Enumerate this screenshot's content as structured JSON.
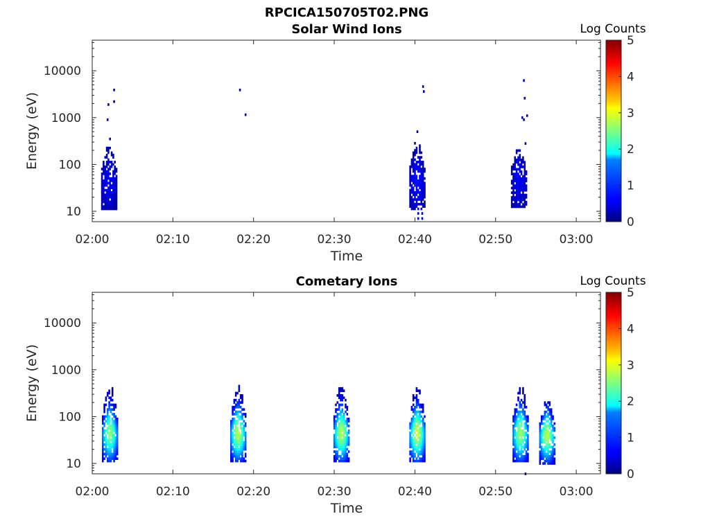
{
  "figure": {
    "filename": "RPCICA150705T02.PNG"
  },
  "chart_data": [
    {
      "type": "heatmap",
      "title": "Solar Wind Ions",
      "xlabel": "Time",
      "ylabel": "Energy (eV)",
      "x_ticks": [
        "02:00",
        "02:10",
        "02:20",
        "02:30",
        "02:40",
        "02:50",
        "03:00"
      ],
      "x_range_minutes": [
        0,
        63
      ],
      "y_scale": "log",
      "y_range": [
        6,
        45000
      ],
      "y_ticks": [
        10,
        100,
        1000,
        10000
      ],
      "y_tick_labels": [
        "10",
        "100",
        "1000",
        "10000"
      ],
      "colorbar": {
        "title": "Log Counts",
        "range": [
          0,
          5
        ],
        "ticks": [
          "0",
          "1",
          "2",
          "3",
          "4",
          "5"
        ],
        "colormap": "jet"
      },
      "clusters": [
        {
          "t": 2.0,
          "e_center": 45,
          "e_spread": 0.35,
          "peak": 0.35,
          "top_energy": 250
        },
        {
          "t": 40.2,
          "e_center": 45,
          "e_spread": 0.35,
          "peak": 0.45,
          "top_energy": 300
        },
        {
          "t": 52.8,
          "e_center": 50,
          "e_spread": 0.35,
          "peak": 0.35,
          "top_energy": 220
        }
      ],
      "points": [
        {
          "t": 2.6,
          "e": 3900,
          "v": 0.2
        },
        {
          "t": 2.6,
          "e": 2200,
          "v": 0.2
        },
        {
          "t": 1.9,
          "e": 1900,
          "v": 0.2
        },
        {
          "t": 1.8,
          "e": 900,
          "v": 0.2
        },
        {
          "t": 2.1,
          "e": 350,
          "v": 0.2
        },
        {
          "t": 18.2,
          "e": 3900,
          "v": 0.2
        },
        {
          "t": 18.9,
          "e": 1150,
          "v": 0.2
        },
        {
          "t": 40.9,
          "e": 4600,
          "v": 0.2
        },
        {
          "t": 41.0,
          "e": 3600,
          "v": 0.2
        },
        {
          "t": 40.2,
          "e": 500,
          "v": 0.2
        },
        {
          "t": 40.3,
          "e": 9,
          "v": 0.3
        },
        {
          "t": 40.3,
          "e": 7,
          "v": 0.3
        },
        {
          "t": 40.8,
          "e": 9,
          "v": 0.3
        },
        {
          "t": 40.8,
          "e": 7,
          "v": 0.3
        },
        {
          "t": 53.4,
          "e": 6200,
          "v": 0.2
        },
        {
          "t": 53.5,
          "e": 2600,
          "v": 0.2
        },
        {
          "t": 53.8,
          "e": 1100,
          "v": 0.2
        },
        {
          "t": 53.2,
          "e": 1000,
          "v": 0.2
        },
        {
          "t": 53.4,
          "e": 900,
          "v": 0.2
        },
        {
          "t": 53.6,
          "e": 280,
          "v": 0.2
        }
      ]
    },
    {
      "type": "heatmap",
      "title": "Cometary Ions",
      "xlabel": "Time",
      "ylabel": "Energy (eV)",
      "x_ticks": [
        "02:00",
        "02:10",
        "02:20",
        "02:30",
        "02:40",
        "02:50",
        "03:00"
      ],
      "x_range_minutes": [
        0,
        63
      ],
      "y_scale": "log",
      "y_range": [
        6,
        45000
      ],
      "y_ticks": [
        10,
        100,
        1000,
        10000
      ],
      "y_tick_labels": [
        "10",
        "100",
        "1000",
        "10000"
      ],
      "colorbar": {
        "title": "Log Counts",
        "range": [
          0,
          5
        ],
        "ticks": [
          "0",
          "1",
          "2",
          "3",
          "4",
          "5"
        ],
        "colormap": "jet"
      },
      "clusters": [
        {
          "t": 2.1,
          "e_center": 45,
          "e_spread": 0.38,
          "peak": 2.3,
          "top_energy": 420
        },
        {
          "t": 18.0,
          "e_center": 45,
          "e_spread": 0.38,
          "peak": 2.5,
          "top_energy": 450
        },
        {
          "t": 30.8,
          "e_center": 45,
          "e_spread": 0.38,
          "peak": 2.5,
          "top_energy": 420
        },
        {
          "t": 40.2,
          "e_center": 45,
          "e_spread": 0.38,
          "peak": 2.6,
          "top_energy": 420
        },
        {
          "t": 53.0,
          "e_center": 45,
          "e_spread": 0.38,
          "peak": 2.4,
          "top_energy": 420
        },
        {
          "t": 56.3,
          "e_center": 40,
          "e_spread": 0.36,
          "peak": 2.5,
          "top_energy": 200
        }
      ],
      "points": [
        {
          "t": 53.6,
          "e": 6,
          "v": 0.2
        }
      ]
    }
  ]
}
